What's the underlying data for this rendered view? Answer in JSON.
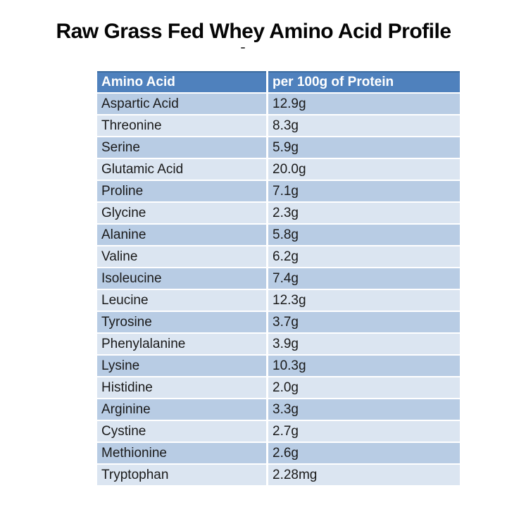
{
  "title": "Raw Grass Fed Whey Amino Acid Profile",
  "colors": {
    "header_bg": "#4f81bd",
    "header_top_border": "#3a6a9f",
    "row_dark": "#b8cce4",
    "row_light": "#dbe5f1",
    "header_text": "#ffffff",
    "body_text": "#1a1a1a",
    "page_bg": "#ffffff"
  },
  "chart_data": {
    "type": "table",
    "title": "Raw Grass Fed Whey Amino Acid Profile",
    "columns": [
      "Amino Acid",
      "per 100g of Protein"
    ],
    "rows": [
      {
        "name": "Aspartic Acid",
        "value": "12.9g"
      },
      {
        "name": "Threonine",
        "value": "8.3g"
      },
      {
        "name": "Serine",
        "value": "5.9g"
      },
      {
        "name": "Glutamic Acid",
        "value": "20.0g"
      },
      {
        "name": "Proline",
        "value": "7.1g"
      },
      {
        "name": "Glycine",
        "value": "2.3g"
      },
      {
        "name": "Alanine",
        "value": "5.8g"
      },
      {
        "name": "Valine",
        "value": "6.2g"
      },
      {
        "name": "Isoleucine",
        "value": "7.4g"
      },
      {
        "name": "Leucine",
        "value": "12.3g"
      },
      {
        "name": "Tyrosine",
        "value": "3.7g"
      },
      {
        "name": "Phenylalanine",
        "value": "3.9g"
      },
      {
        "name": "Lysine",
        "value": "10.3g"
      },
      {
        "name": "Histidine",
        "value": "2.0g"
      },
      {
        "name": "Arginine",
        "value": "3.3g"
      },
      {
        "name": "Cystine",
        "value": "2.7g"
      },
      {
        "name": "Methionine",
        "value": "2.6g"
      },
      {
        "name": "Tryptophan",
        "value": "2.28mg"
      }
    ],
    "layout_hints": {
      "banding": "alternating rows, first row darker",
      "header_style": "solid blue with white bold text"
    }
  }
}
